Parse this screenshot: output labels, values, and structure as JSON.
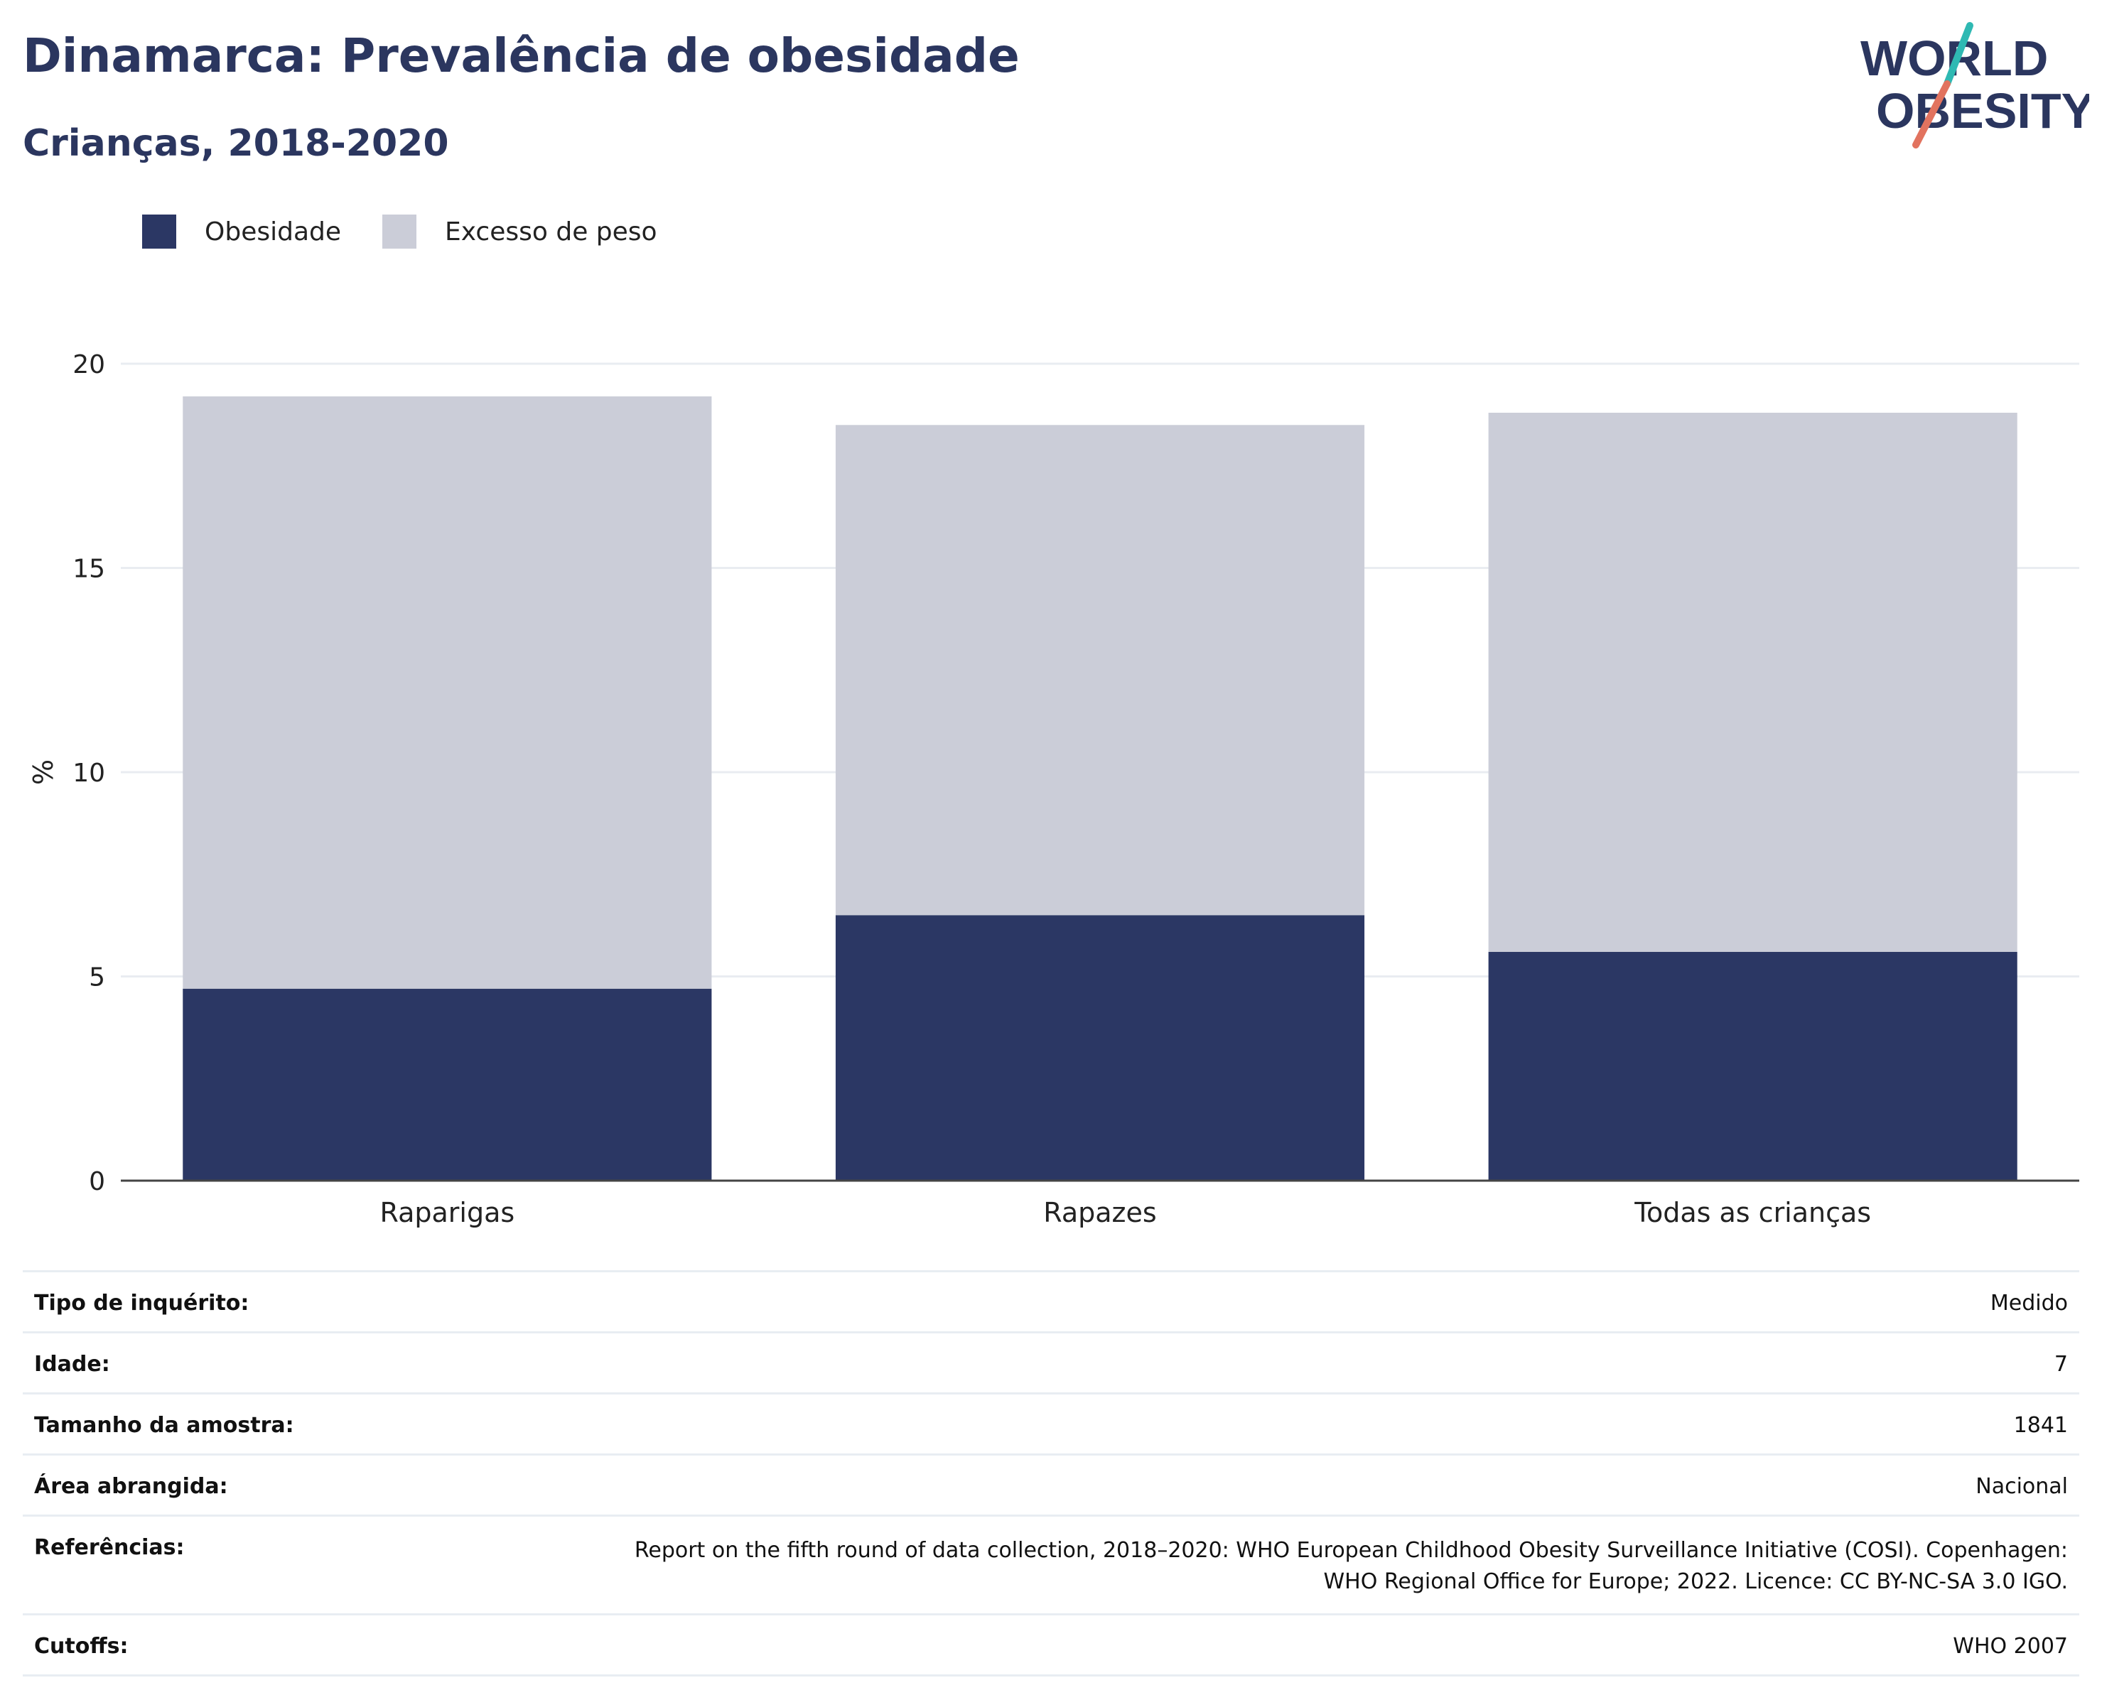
{
  "header": {
    "title": "Dinamarca: Prevalência de obesidade",
    "subtitle": "Crianças, 2018-2020"
  },
  "logo": {
    "line1": "WORLD",
    "line2": "OBESITY",
    "slash_top_color": "#2fb9b3",
    "slash_bottom_color": "#e2735f"
  },
  "legend": [
    {
      "label": "Obesidade",
      "color": "#2b3764"
    },
    {
      "label": "Excesso de peso",
      "color": "#cbcdd8"
    }
  ],
  "chart_data": {
    "type": "bar",
    "stacked": true,
    "categories": [
      "Raparigas",
      "Rapazes",
      "Todas as crianças"
    ],
    "series": [
      {
        "name": "Obesidade",
        "values": [
          4.7,
          6.5,
          5.6
        ],
        "color": "#2b3764"
      },
      {
        "name": "Excesso de peso",
        "values": [
          14.5,
          12.0,
          13.2
        ],
        "color": "#cbcdd8"
      }
    ],
    "totals": [
      19.2,
      18.5,
      18.8
    ],
    "ylabel": "%",
    "ylim": [
      0,
      20
    ],
    "yticks": [
      "0",
      "5",
      "10",
      "15",
      "20"
    ],
    "grid": true,
    "legend_position": "top-left"
  },
  "info": [
    {
      "key": "Tipo de inquérito:",
      "value": "Medido"
    },
    {
      "key": "Idade:",
      "value": "7"
    },
    {
      "key": "Tamanho da amostra:",
      "value": "1841"
    },
    {
      "key": "Área abrangida:",
      "value": "Nacional"
    },
    {
      "key": "Referências:",
      "value_lines": [
        "Report on the fifth round of data collection, 2018–2020: WHO European Childhood Obesity Surveillance Initiative (COSI). Copenhagen:",
        "WHO Regional Office for Europe; 2022. Licence: CC BY-NC-SA 3.0 IGO."
      ]
    },
    {
      "key": "Cutoffs:",
      "value": "WHO 2007"
    }
  ]
}
